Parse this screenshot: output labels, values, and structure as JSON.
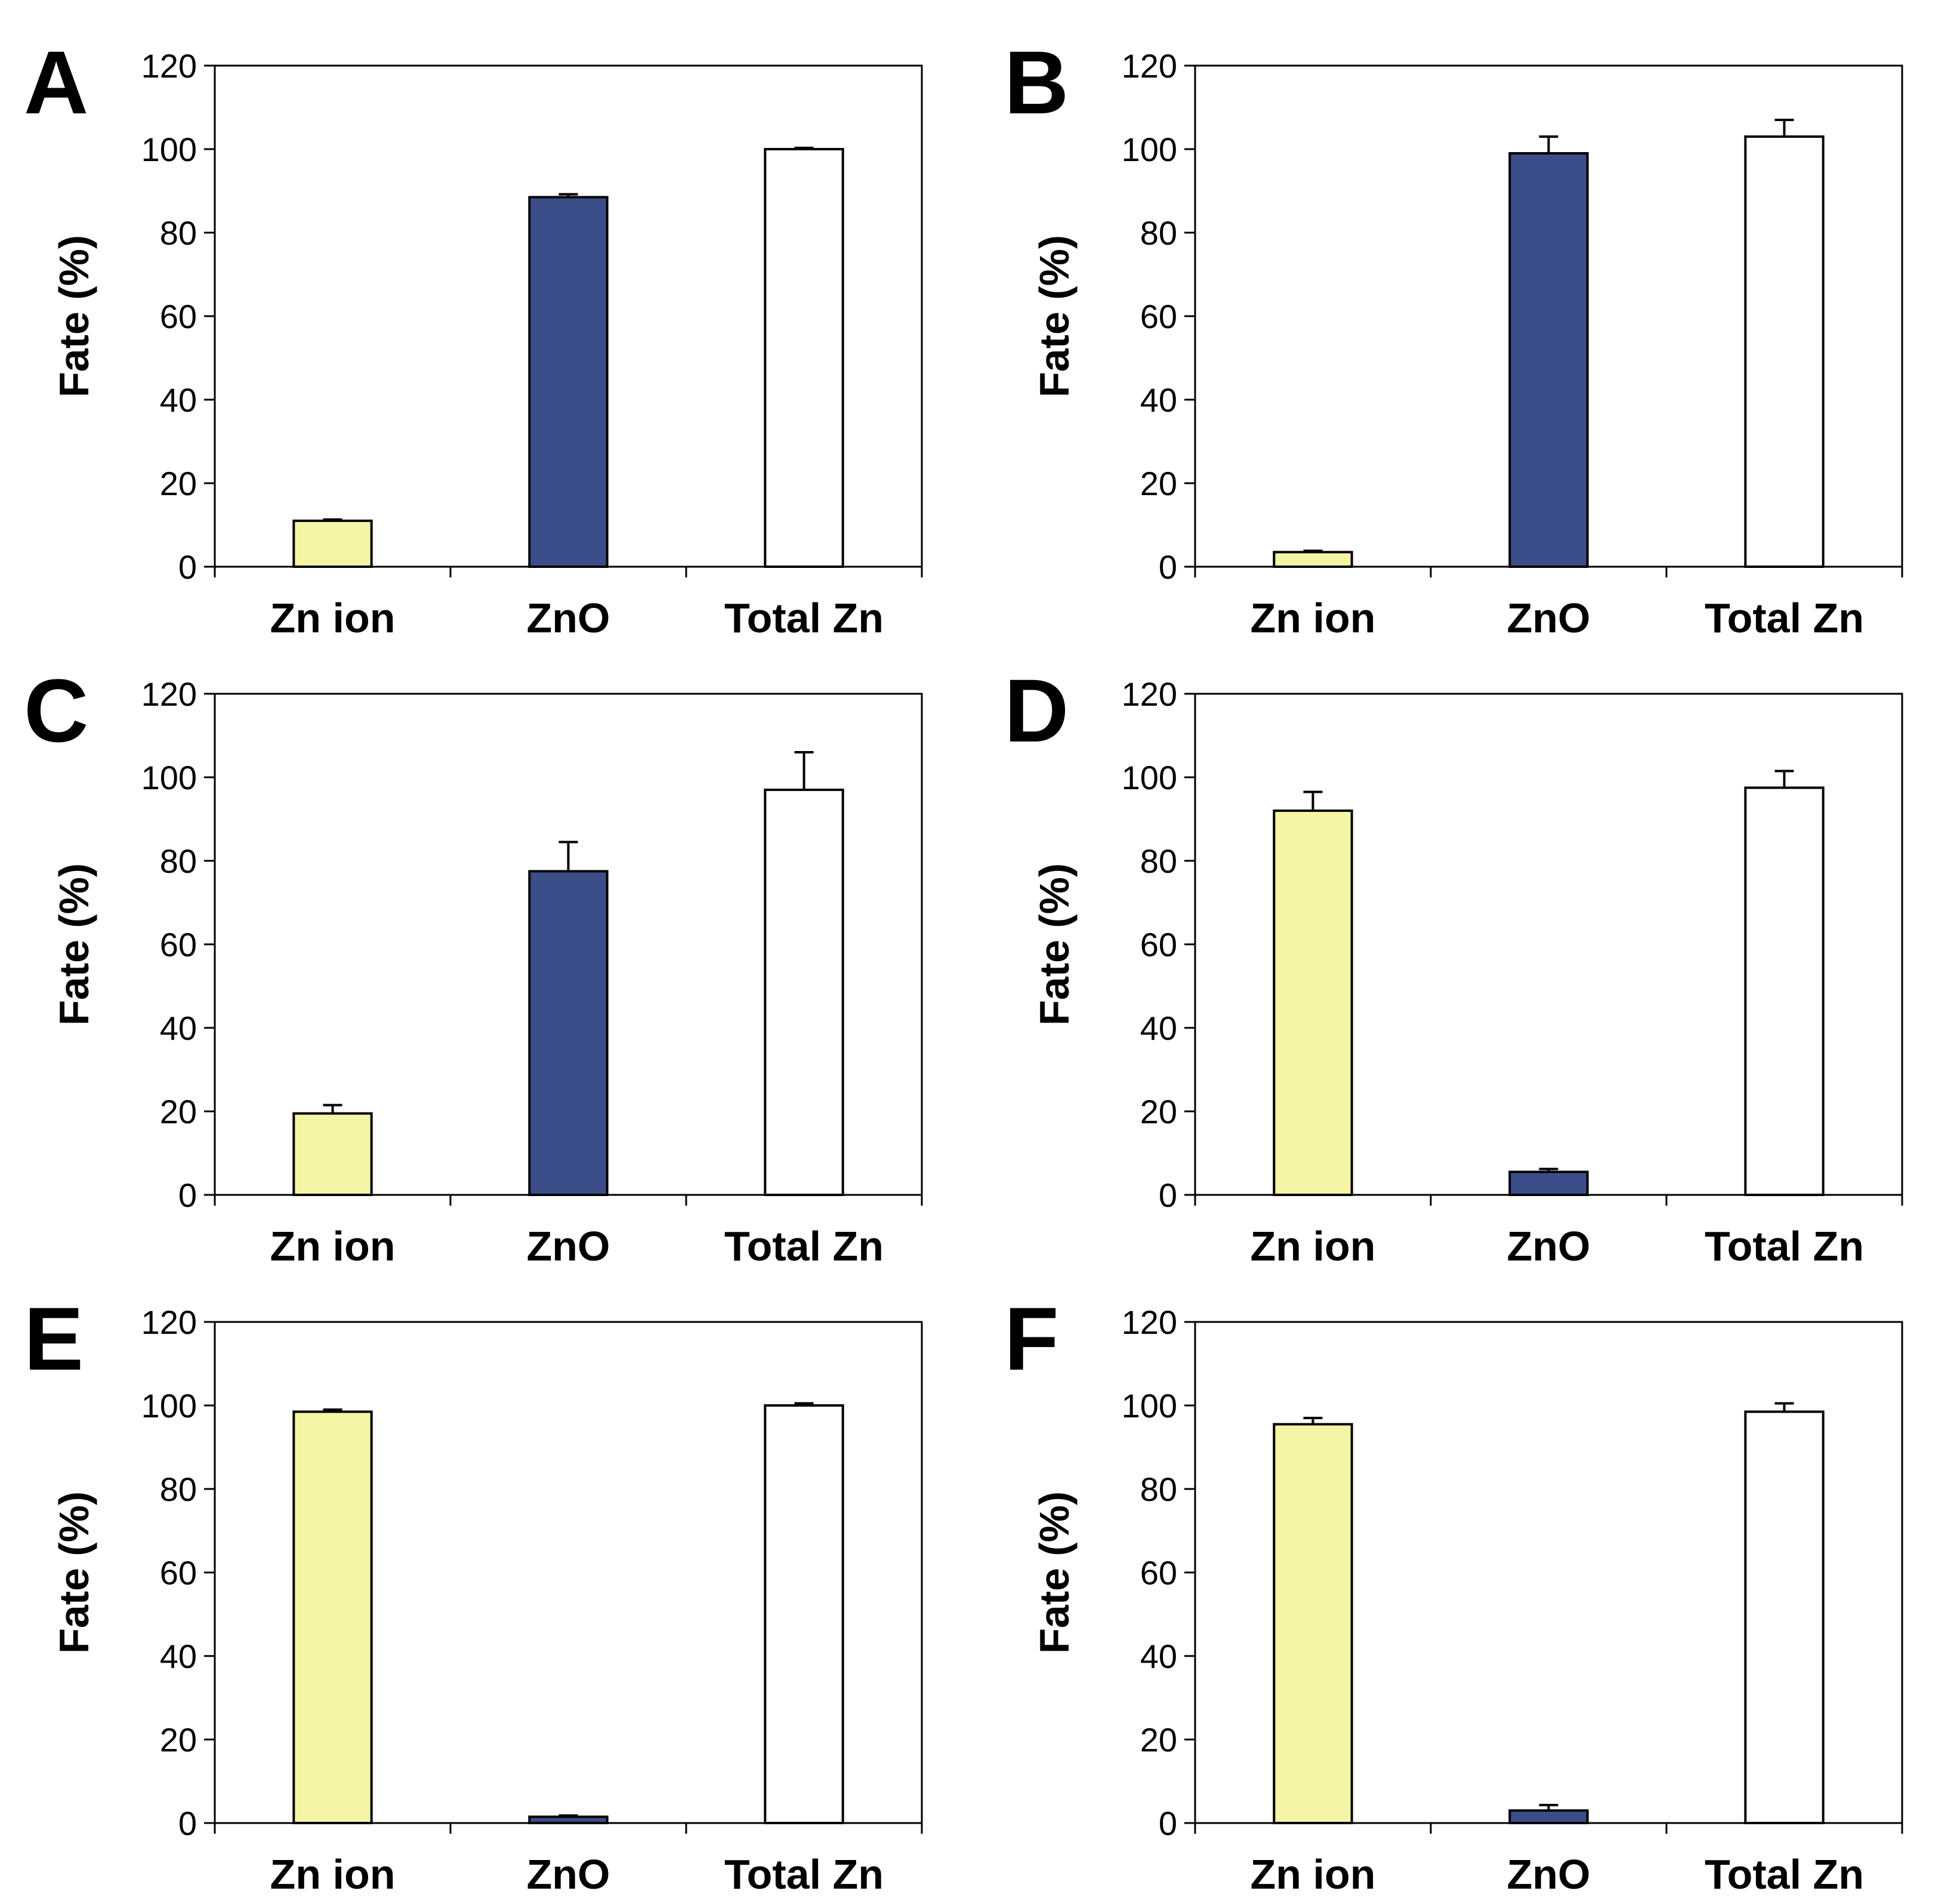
{
  "chart_data": [
    {
      "type": "bar",
      "panel_label": "A",
      "categories": [
        "Zn ion",
        "ZnO",
        "Total Zn"
      ],
      "values": [
        11,
        88.5,
        100
      ],
      "errors": [
        0.3,
        0.7,
        0.3
      ],
      "ylabel": "Fate (%)",
      "ylim": [
        0,
        120
      ],
      "yticks": [
        "0",
        "20",
        "40",
        "60",
        "80",
        "100",
        "120"
      ],
      "bar_colors": [
        "#f4f4a4",
        "#3b4e8a",
        "#ffffff"
      ]
    },
    {
      "type": "bar",
      "panel_label": "B",
      "categories": [
        "Zn ion",
        "ZnO",
        "Total Zn"
      ],
      "values": [
        3.5,
        99,
        103
      ],
      "errors": [
        0.3,
        4,
        4
      ],
      "ylabel": "Fate (%)",
      "ylim": [
        0,
        120
      ],
      "yticks": [
        "0",
        "20",
        "40",
        "60",
        "80",
        "100",
        "120"
      ],
      "bar_colors": [
        "#f4f4a4",
        "#3b4e8a",
        "#ffffff"
      ]
    },
    {
      "type": "bar",
      "panel_label": "C",
      "categories": [
        "Zn ion",
        "ZnO",
        "Total Zn"
      ],
      "values": [
        19.5,
        77.5,
        97
      ],
      "errors": [
        2,
        7,
        9
      ],
      "ylabel": "Fate (%)",
      "ylim": [
        0,
        120
      ],
      "yticks": [
        "0",
        "20",
        "40",
        "60",
        "80",
        "100",
        "120"
      ],
      "bar_colors": [
        "#f4f4a4",
        "#3b4e8a",
        "#ffffff"
      ]
    },
    {
      "type": "bar",
      "panel_label": "D",
      "categories": [
        "Zn ion",
        "ZnO",
        "Total Zn"
      ],
      "values": [
        92,
        5.5,
        97.5
      ],
      "errors": [
        4.5,
        0.7,
        4
      ],
      "ylabel": "Fate (%)",
      "ylim": [
        0,
        120
      ],
      "yticks": [
        "0",
        "20",
        "40",
        "60",
        "80",
        "100",
        "120"
      ],
      "bar_colors": [
        "#f4f4a4",
        "#3b4e8a",
        "#ffffff"
      ]
    },
    {
      "type": "bar",
      "panel_label": "E",
      "categories": [
        "Zn ion",
        "ZnO",
        "Total Zn"
      ],
      "values": [
        98.5,
        1.5,
        100
      ],
      "errors": [
        0.5,
        0.3,
        0.5
      ],
      "ylabel": "Fate (%)",
      "ylim": [
        0,
        120
      ],
      "yticks": [
        "0",
        "20",
        "40",
        "60",
        "80",
        "100",
        "120"
      ],
      "bar_colors": [
        "#f4f4a4",
        "#3b4e8a",
        "#ffffff"
      ]
    },
    {
      "type": "bar",
      "panel_label": "F",
      "categories": [
        "Zn ion",
        "ZnO",
        "Total Zn"
      ],
      "values": [
        95.5,
        3,
        98.5
      ],
      "errors": [
        1.5,
        1.3,
        2
      ],
      "ylabel": "Fate (%)",
      "ylim": [
        0,
        120
      ],
      "yticks": [
        "0",
        "20",
        "40",
        "60",
        "80",
        "100",
        "120"
      ],
      "bar_colors": [
        "#f4f4a4",
        "#3b4e8a",
        "#ffffff"
      ]
    }
  ]
}
